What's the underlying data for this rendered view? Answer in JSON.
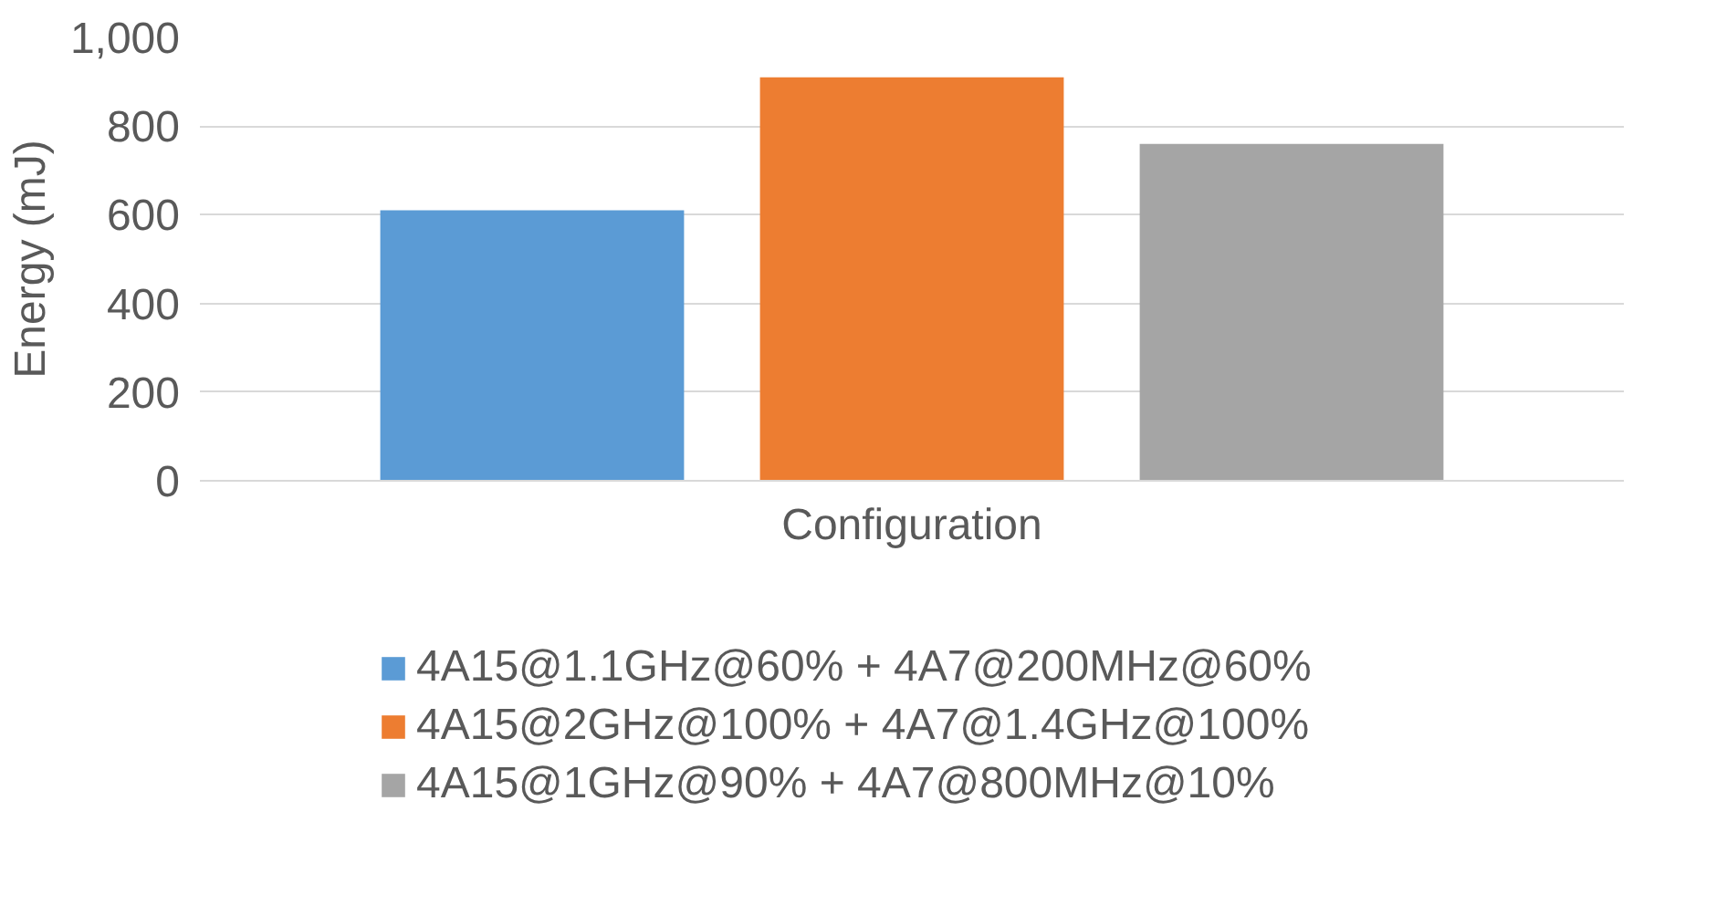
{
  "chart_data": {
    "type": "bar",
    "xlabel": "Configuration",
    "ylabel": "Energy (mJ)",
    "categories": [
      null
    ],
    "series": [
      {
        "name": "4A15@1.1GHz@60% + 4A7@200MHz@60%",
        "color": "#5b9bd5",
        "values": [
          610
        ]
      },
      {
        "name": "4A15@2GHz@100% + 4A7@1.4GHz@100%",
        "color": "#ed7d31",
        "values": [
          910
        ]
      },
      {
        "name": "4A15@1GHz@90% + 4A7@800MHz@10%",
        "color": "#a5a5a5",
        "values": [
          760
        ]
      }
    ],
    "ylim": [
      0,
      1000
    ],
    "yticks": [
      0,
      200,
      400,
      600,
      800,
      {
        "value": 1000,
        "label": "1,000"
      }
    ],
    "grid": "y",
    "legend": "bottom"
  }
}
